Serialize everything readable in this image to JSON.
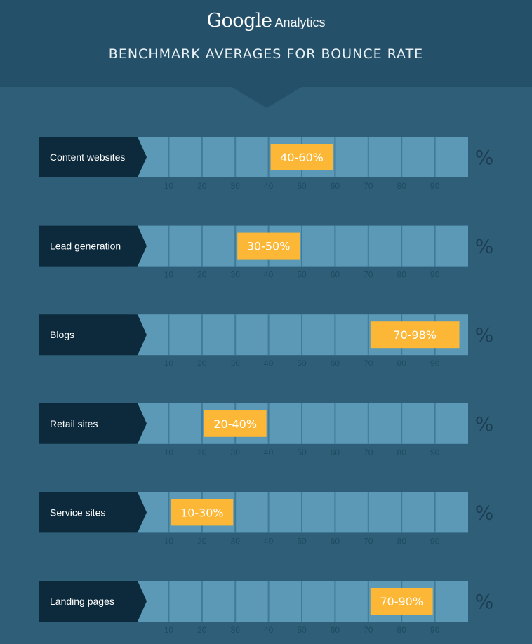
{
  "header": {
    "brand_google": "Google",
    "brand_analytics": "Analytics",
    "title": "BENCHMARK AVERAGES FOR BOUNCE RATE"
  },
  "colors": {
    "background": "#2f5f78",
    "header": "#24506a",
    "label_box": "#0c2a3b",
    "track": "#5b99b6",
    "track_divider": "#3f7a98",
    "highlight": "#fbb735"
  },
  "chart_data": {
    "type": "bar",
    "orientation": "horizontal-range",
    "title": "BENCHMARK AVERAGES FOR BOUNCE RATE",
    "unit": "%",
    "xlim": [
      0,
      100
    ],
    "ticks": [
      10,
      20,
      30,
      40,
      50,
      60,
      70,
      80,
      90
    ],
    "categories": [
      "Content websites",
      "Lead generation",
      "Blogs",
      "Retail sites",
      "Service sites",
      "Landing pages"
    ],
    "ranges": [
      {
        "category": "Content websites",
        "min": 40,
        "max": 60,
        "label": "40-60%"
      },
      {
        "category": "Lead generation",
        "min": 30,
        "max": 50,
        "label": "30-50%"
      },
      {
        "category": "Blogs",
        "min": 70,
        "max": 98,
        "label": "70-98%"
      },
      {
        "category": "Retail sites",
        "min": 20,
        "max": 40,
        "label": "20-40%"
      },
      {
        "category": "Service sites",
        "min": 10,
        "max": 30,
        "label": "10-30%"
      },
      {
        "category": "Landing pages",
        "min": 70,
        "max": 90,
        "label": "70-90%"
      }
    ]
  }
}
